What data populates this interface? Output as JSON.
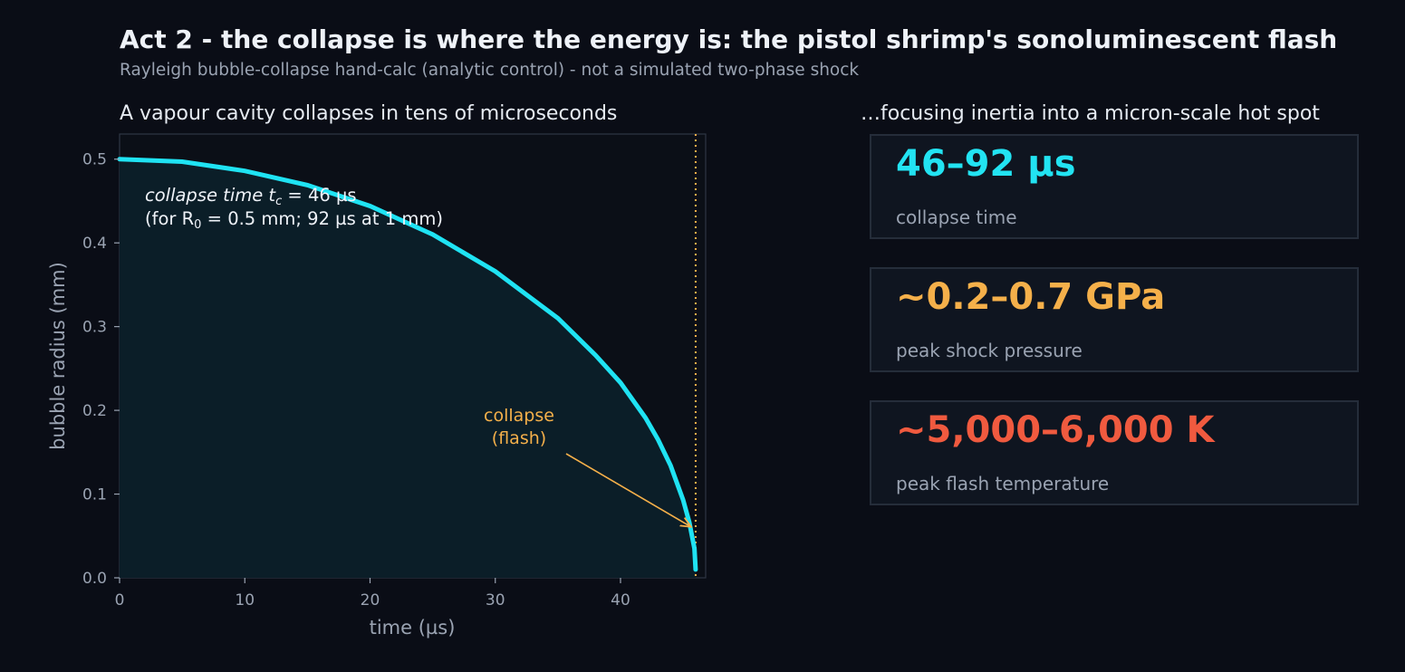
{
  "header": {
    "title": "Act 2 - the collapse is where the energy is: the pistol shrimp's sonoluminescent flash",
    "subtitle": "Rayleigh bubble-collapse hand-calc (analytic control) - not a simulated two-phase shock"
  },
  "left_panel": {
    "title": "A vapour cavity collapses in tens of microseconds"
  },
  "right_panel": {
    "title": "…focusing inertia into a micron-scale hot spot"
  },
  "cards": [
    {
      "value": "46–92 µs",
      "label": "collapse time",
      "color": "#22e3f2"
    },
    {
      "value": "~0.2–0.7 GPa",
      "label": "peak shock pressure",
      "color": "#f5b04a"
    },
    {
      "value": "~5,000–6,000 K",
      "label": "peak flash temperature",
      "color": "#f05a3f"
    }
  ],
  "chart_data": {
    "type": "area",
    "xlabel": "time  (µs)",
    "ylabel": "bubble radius  (mm)",
    "xlim": [
      0,
      46.8
    ],
    "ylim": [
      0,
      0.53
    ],
    "xticks": [
      0,
      10,
      20,
      30,
      40
    ],
    "yticks": [
      0.0,
      0.1,
      0.2,
      0.3,
      0.4,
      0.5
    ],
    "series": [
      {
        "x": [
          0,
          5,
          10,
          15,
          20,
          25,
          30,
          35,
          38,
          40,
          42,
          43,
          44,
          45,
          45.5,
          45.9,
          46
        ],
        "values": [
          0.5,
          0.497,
          0.486,
          0.469,
          0.444,
          0.41,
          0.366,
          0.31,
          0.266,
          0.233,
          0.191,
          0.165,
          0.134,
          0.093,
          0.066,
          0.035,
          0.01
        ]
      }
    ],
    "collapse_marker_x": 46,
    "info_text_line1": "collapse time  t",
    "info_text_sub1": "c",
    "info_text_rest1": " = 46 µs",
    "info_text_line2": "(for R",
    "info_text_sub2": "0",
    "info_text_rest2": " = 0.5 mm; 92 µs at 1 mm)",
    "annotation_line1": "collapse",
    "annotation_line2": "(flash)",
    "annotation_target": [
      46,
      0.063
    ],
    "curve_color": "#1fe3f3",
    "fill_color": "#0b1e28",
    "annotation_color": "#f5b04a",
    "grid": false
  }
}
